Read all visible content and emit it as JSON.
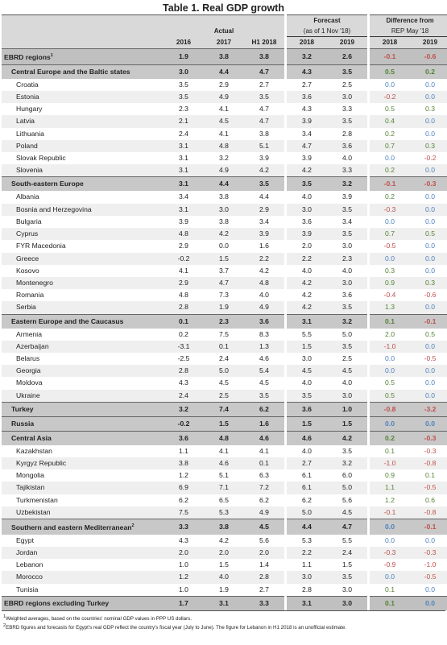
{
  "title": "Table 1. Real GDP growth",
  "headers": {
    "actual": "Actual",
    "forecast": "Forecast",
    "forecast_sub": "(as of 1 Nov '18)",
    "diff": "Difference from",
    "diff_sub": "REP May '18",
    "years": [
      "2016",
      "2017",
      "H1 2018",
      "2018",
      "2019",
      "2018",
      "2019"
    ]
  },
  "rows": [
    {
      "kind": "total",
      "name": "EBRD regions",
      "sup": "1",
      "v": [
        "1.9",
        "3.8",
        "3.8",
        "3.2",
        "2.6",
        "-0.1",
        "-0.6"
      ]
    },
    {
      "kind": "grp",
      "name": "Central Europe and the Baltic states",
      "v": [
        "3.0",
        "4.4",
        "4.7",
        "4.3",
        "3.5",
        "0.5",
        "0.2"
      ]
    },
    {
      "kind": "row",
      "name": "Croatia",
      "v": [
        "3.5",
        "2.9",
        "2.7",
        "2.7",
        "2.5",
        "0.0",
        "0.0"
      ]
    },
    {
      "kind": "row",
      "name": "Estonia",
      "v": [
        "3.5",
        "4.9",
        "3.5",
        "3.6",
        "3.0",
        "-0.2",
        "0.0"
      ]
    },
    {
      "kind": "row",
      "name": "Hungary",
      "v": [
        "2.3",
        "4.1",
        "4.7",
        "4.3",
        "3.3",
        "0.5",
        "0.3"
      ]
    },
    {
      "kind": "row",
      "name": "Latvia",
      "v": [
        "2.1",
        "4.5",
        "4.7",
        "3.9",
        "3.5",
        "0.4",
        "0.0"
      ]
    },
    {
      "kind": "row",
      "name": "Lithuania",
      "v": [
        "2.4",
        "4.1",
        "3.8",
        "3.4",
        "2.8",
        "0.2",
        "0.0"
      ]
    },
    {
      "kind": "row",
      "name": "Poland",
      "v": [
        "3.1",
        "4.8",
        "5.1",
        "4.7",
        "3.6",
        "0.7",
        "0.3"
      ]
    },
    {
      "kind": "row",
      "name": "Slovak Republic",
      "v": [
        "3.1",
        "3.2",
        "3.9",
        "3.9",
        "4.0",
        "0.0",
        "-0.2"
      ]
    },
    {
      "kind": "row",
      "name": "Slovenia",
      "v": [
        "3.1",
        "4.9",
        "4.2",
        "4.2",
        "3.3",
        "0.2",
        "0.0"
      ]
    },
    {
      "kind": "grp",
      "name": "South-eastern Europe",
      "v": [
        "3.1",
        "4.4",
        "3.5",
        "3.5",
        "3.2",
        "-0.1",
        "-0.3"
      ]
    },
    {
      "kind": "row",
      "name": "Albania",
      "v": [
        "3.4",
        "3.8",
        "4.4",
        "4.0",
        "3.9",
        "0.2",
        "0.0"
      ]
    },
    {
      "kind": "row",
      "name": "Bosnia and Herzegovina",
      "v": [
        "3.1",
        "3.0",
        "2.9",
        "3.0",
        "3.5",
        "-0.3",
        "0.0"
      ]
    },
    {
      "kind": "row",
      "name": "Bulgaria",
      "v": [
        "3.9",
        "3.8",
        "3.4",
        "3.6",
        "3.4",
        "0.0",
        "0.0"
      ]
    },
    {
      "kind": "row",
      "name": "Cyprus",
      "v": [
        "4.8",
        "4.2",
        "3.9",
        "3.9",
        "3.5",
        "0.7",
        "0.5"
      ]
    },
    {
      "kind": "row",
      "name": "FYR Macedonia",
      "v": [
        "2.9",
        "0.0",
        "1.6",
        "2.0",
        "3.0",
        "-0.5",
        "0.0"
      ]
    },
    {
      "kind": "row",
      "name": "Greece",
      "v": [
        "-0.2",
        "1.5",
        "2.2",
        "2.2",
        "2.3",
        "0.0",
        "0.0"
      ]
    },
    {
      "kind": "row",
      "name": "Kosovo",
      "v": [
        "4.1",
        "3.7",
        "4.2",
        "4.0",
        "4.0",
        "0.3",
        "0.0"
      ]
    },
    {
      "kind": "row",
      "name": "Montenegro",
      "v": [
        "2.9",
        "4.7",
        "4.8",
        "4.2",
        "3.0",
        "0.9",
        "0.3"
      ]
    },
    {
      "kind": "row",
      "name": "Romania",
      "v": [
        "4.8",
        "7.3",
        "4.0",
        "4.2",
        "3.6",
        "-0.4",
        "-0.6"
      ]
    },
    {
      "kind": "row",
      "name": "Serbia",
      "v": [
        "2.8",
        "1.9",
        "4.9",
        "4.2",
        "3.5",
        "1.3",
        "0.0"
      ]
    },
    {
      "kind": "grp",
      "name": "Eastern Europe and the Caucasus",
      "v": [
        "0.1",
        "2.3",
        "3.6",
        "3.1",
        "3.2",
        "0.1",
        "-0.1"
      ]
    },
    {
      "kind": "row",
      "name": "Armenia",
      "v": [
        "0.2",
        "7.5",
        "8.3",
        "5.5",
        "5.0",
        "2.0",
        "0.5"
      ]
    },
    {
      "kind": "row",
      "name": "Azerbaijan",
      "v": [
        "-3.1",
        "0.1",
        "1.3",
        "1.5",
        "3.5",
        "-1.0",
        "0.0"
      ]
    },
    {
      "kind": "row",
      "name": "Belarus",
      "v": [
        "-2.5",
        "2.4",
        "4.6",
        "3.0",
        "2.5",
        "0.0",
        "-0.5"
      ]
    },
    {
      "kind": "row",
      "name": "Georgia",
      "v": [
        "2.8",
        "5.0",
        "5.4",
        "4.5",
        "4.5",
        "0.0",
        "0.0"
      ]
    },
    {
      "kind": "row",
      "name": "Moldova",
      "v": [
        "4.3",
        "4.5",
        "4.5",
        "4.0",
        "4.0",
        "0.5",
        "0.0"
      ]
    },
    {
      "kind": "row",
      "name": "Ukraine",
      "v": [
        "2.4",
        "2.5",
        "3.5",
        "3.5",
        "3.0",
        "0.5",
        "0.0"
      ]
    },
    {
      "kind": "single",
      "name": "Turkey",
      "v": [
        "3.2",
        "7.4",
        "6.2",
        "3.6",
        "1.0",
        "-0.8",
        "-3.2"
      ]
    },
    {
      "kind": "single",
      "name": "Russia",
      "v": [
        "-0.2",
        "1.5",
        "1.6",
        "1.5",
        "1.5",
        "0.0",
        "0.0"
      ]
    },
    {
      "kind": "grp",
      "name": "Central Asia",
      "v": [
        "3.6",
        "4.8",
        "4.6",
        "4.6",
        "4.2",
        "0.2",
        "-0.3"
      ]
    },
    {
      "kind": "row",
      "name": "Kazakhstan",
      "v": [
        "1.1",
        "4.1",
        "4.1",
        "4.0",
        "3.5",
        "0.1",
        "-0.3"
      ]
    },
    {
      "kind": "row",
      "name": "Kyrgyz Republic",
      "v": [
        "3.8",
        "4.6",
        "0.1",
        "2.7",
        "3.2",
        "-1.0",
        "-0.8"
      ]
    },
    {
      "kind": "row",
      "name": "Mongolia",
      "v": [
        "1.2",
        "5.1",
        "6.3",
        "6.1",
        "6.0",
        "0.9",
        "0.1"
      ]
    },
    {
      "kind": "row",
      "name": "Tajikistan",
      "v": [
        "6.9",
        "7.1",
        "7.2",
        "6.1",
        "5.0",
        "1.1",
        "-0.5"
      ]
    },
    {
      "kind": "row",
      "name": "Turkmenistan",
      "v": [
        "6.2",
        "6.5",
        "6.2",
        "6.2",
        "5.6",
        "1.2",
        "0.6"
      ]
    },
    {
      "kind": "row",
      "name": "Uzbekistan",
      "v": [
        "7.5",
        "5.3",
        "4.9",
        "5.0",
        "4.5",
        "-0.1",
        "-0.8"
      ]
    },
    {
      "kind": "grp",
      "name": "Southern and eastern Mediterranean",
      "sup": "2",
      "v": [
        "3.3",
        "3.8",
        "4.5",
        "4.4",
        "4.7",
        "0.0",
        "-0.1"
      ]
    },
    {
      "kind": "row",
      "name": "Egypt",
      "v": [
        "4.3",
        "4.2",
        "5.6",
        "5.3",
        "5.5",
        "0.0",
        "0.0"
      ]
    },
    {
      "kind": "row",
      "name": "Jordan",
      "v": [
        "2.0",
        "2.0",
        "2.0",
        "2.2",
        "2.4",
        "-0.3",
        "-0.3"
      ]
    },
    {
      "kind": "row",
      "name": "Lebanon",
      "v": [
        "1.0",
        "1.5",
        "1.4",
        "1.1",
        "1.5",
        "-0.9",
        "-1.0"
      ]
    },
    {
      "kind": "row",
      "name": "Morocco",
      "v": [
        "1.2",
        "4.0",
        "2.8",
        "3.0",
        "3.5",
        "0.0",
        "-0.5"
      ]
    },
    {
      "kind": "row",
      "name": "Tunisia",
      "v": [
        "1.0",
        "1.9",
        "2.7",
        "2.8",
        "3.0",
        "0.1",
        "0.0"
      ]
    },
    {
      "kind": "total",
      "name": "EBRD regions excluding Turkey",
      "v": [
        "1.7",
        "3.1",
        "3.3",
        "3.1",
        "3.0",
        "0.1",
        "0.0"
      ]
    }
  ],
  "notes": [
    {
      "sup": "1",
      "text": "Weighted averages, based on the countries' nominal GDP values in PPP US dollars."
    },
    {
      "sup": "2",
      "text": "EBRD figures and forecasts for Egypt's real GDP reflect the country's fiscal year (July to June). The figure for Lebanon in H1 2018 is an unofficial estimate."
    }
  ],
  "colors": {
    "positive": "#548235",
    "negative": "#c0504d",
    "zero": "#4f81bd",
    "group_bg": "#c8c8c8",
    "header_bg": "#d9d9d9",
    "stripe_bg": "#efefef"
  }
}
